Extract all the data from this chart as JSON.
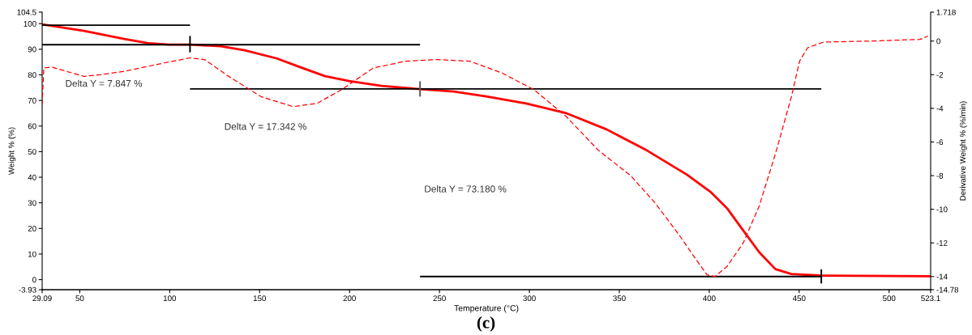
{
  "chart_data": {
    "type": "line",
    "xlabel": "Temperature (°C)",
    "ylabel": "Weight % (%)",
    "y2label": "Derivative Weight % (%/min)",
    "xlim": [
      29.09,
      523.1
    ],
    "xticks": [
      29.09,
      50,
      100,
      150,
      200,
      250,
      300,
      350,
      400,
      450,
      500,
      523.1
    ],
    "ylim": [
      -3.93,
      104.5
    ],
    "yticks": [
      -3.93,
      0,
      10,
      20,
      30,
      40,
      50,
      60,
      70,
      80,
      90,
      100,
      104.5
    ],
    "y2lim": [
      -14.78,
      1.718
    ],
    "y2ticks": [
      -14.78,
      -14,
      -12,
      -10,
      -8,
      -6,
      -4,
      -2,
      0,
      1.718
    ],
    "grid": false,
    "series": [
      {
        "color": "#ff0000",
        "line_style": "solid",
        "x": [
          29.09,
          52.3,
          74.7,
          88.1,
          99.7,
          111.3,
          128.3,
          141.7,
          159.6,
          173.0,
          186.4,
          199.8,
          217.7,
          239.2,
          258.0,
          275.9,
          298.2,
          320.6,
          342.9,
          365.3,
          387.6,
          401.0,
          410.0,
          418.9,
          427.8,
          436.8,
          445.7,
          461.4,
          523.1
        ],
        "values": [
          99.7,
          97.2,
          94.0,
          92.4,
          91.8,
          91.8,
          91.2,
          89.6,
          86.4,
          82.9,
          79.5,
          77.6,
          75.7,
          74.4,
          73.5,
          71.6,
          68.8,
          65.0,
          58.7,
          50.5,
          41.0,
          34.1,
          27.8,
          19.2,
          10.7,
          4.1,
          2.2,
          1.6,
          1.3
        ]
      },
      {
        "color": "#ff0000",
        "line_style": "dashed",
        "axis": "y2",
        "x": [
          29.09,
          30.0,
          34.5,
          52.3,
          61.3,
          74.7,
          97.0,
          111.3,
          119.4,
          132.8,
          150.7,
          168.6,
          182.0,
          195.4,
          213.3,
          231.2,
          249.0,
          266.9,
          284.8,
          302.7,
          320.6,
          338.4,
          356.3,
          369.7,
          383.1,
          392.1,
          398.8,
          403.2,
          409.9,
          418.9,
          427.8,
          436.8,
          445.7,
          450.2,
          454.7,
          463.6,
          490.4,
          517.2,
          521.6
        ],
        "values": [
          -3.8,
          -1.6,
          -1.55,
          -2.1,
          -2.0,
          -1.8,
          -1.3,
          -1.0,
          -1.1,
          -2.1,
          -3.3,
          -3.9,
          -3.7,
          -2.9,
          -1.6,
          -1.2,
          -1.1,
          -1.2,
          -1.9,
          -2.9,
          -4.5,
          -6.5,
          -8.0,
          -9.6,
          -11.5,
          -12.9,
          -13.9,
          -14.0,
          -13.4,
          -12.0,
          -9.8,
          -6.7,
          -3.3,
          -1.2,
          -0.4,
          -0.06,
          0.0,
          0.1,
          0.3
        ]
      },
      {
        "color": "#000000",
        "line_style": "solid",
        "x": [
          29.09,
          111.3
        ],
        "values": [
          99.4,
          99.4
        ]
      },
      {
        "color": "#000000",
        "line_style": "solid",
        "x": [
          29.09,
          239.2
        ],
        "values": [
          91.8,
          91.8
        ]
      },
      {
        "color": "#000000",
        "line_style": "solid",
        "x": [
          111.3,
          462.3
        ],
        "values": [
          74.5,
          74.5
        ]
      },
      {
        "color": "#000000",
        "line_style": "solid",
        "x": [
          239.2,
          462.3
        ],
        "values": [
          1.2,
          1.2
        ]
      },
      {
        "color": "#000000",
        "line_style": "solid",
        "x": [
          111.3,
          111.3
        ],
        "values": [
          88.8,
          95.2
        ]
      },
      {
        "color": "#555555",
        "line_style": "solid",
        "x": [
          239.2,
          239.2
        ],
        "values": [
          71.5,
          77.5
        ]
      },
      {
        "color": "#000000",
        "line_style": "solid",
        "x": [
          462.3,
          462.3
        ],
        "values": [
          -1.5,
          4.0
        ]
      }
    ],
    "annotations": [
      "Delta Y = 7.847 %",
      "Delta Y = 17.342 %",
      "Delta Y = 73.180 %",
      "(c)"
    ]
  }
}
